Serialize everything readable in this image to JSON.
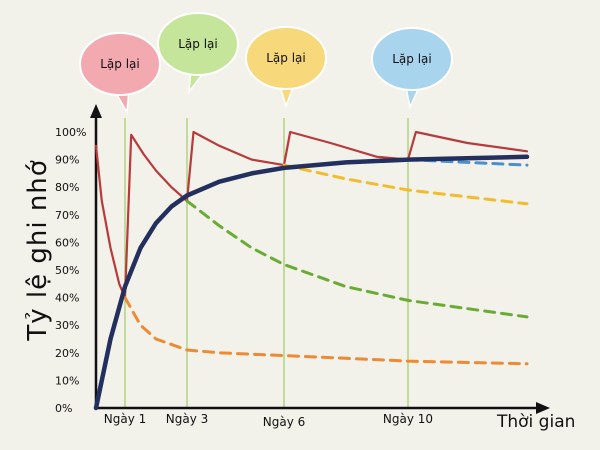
{
  "chart_data": {
    "type": "line",
    "title": "",
    "xlabel": "Thời gian",
    "ylabel": "Tỷ lệ ghi nhớ",
    "xlim": [
      0,
      13
    ],
    "ylim": [
      0,
      100
    ],
    "y_ticks": [
      "0%",
      "10%",
      "20%",
      "30%",
      "40%",
      "50%",
      "60%",
      "70%",
      "80%",
      "90%",
      "100%"
    ],
    "x_ticks": [
      {
        "x": 1,
        "label": "Ngày 1"
      },
      {
        "x": 3,
        "label": "Ngày 3"
      },
      {
        "x": 6,
        "label": "Ngày 6"
      },
      {
        "x": 10,
        "label": "Ngày 10"
      }
    ],
    "repeat_labels": [
      {
        "x": 1,
        "label": "Lặp lại",
        "color": "#f2a9b0"
      },
      {
        "x": 3,
        "label": "Lặp lại",
        "color": "#c5e69a"
      },
      {
        "x": 6,
        "label": "Lặp lại",
        "color": "#f7d87a"
      },
      {
        "x": 10,
        "label": "Lặp lại",
        "color": "#a9d4ee"
      }
    ],
    "series": [
      {
        "color": "#b83a3a",
        "style": "solid",
        "x": [
          0,
          0.2,
          0.5,
          0.8,
          1.0,
          1.2,
          1.6,
          2.0,
          2.5,
          3.0,
          3.2,
          4.0,
          5.0,
          6.0,
          6.2,
          7.5,
          9.0,
          10.0,
          10.2,
          11.5,
          13.0
        ],
        "y": [
          95,
          75,
          58,
          45,
          40,
          99,
          92,
          86,
          80,
          75,
          100,
          95,
          90,
          88,
          100,
          96,
          91,
          90,
          100,
          96,
          93
        ]
      },
      {
        "color": "#ee8a33",
        "style": "dashed",
        "x": [
          1,
          1.5,
          2,
          3,
          4,
          6,
          8,
          10,
          13
        ],
        "y": [
          40,
          30,
          25,
          21,
          20,
          19,
          18,
          17,
          16
        ]
      },
      {
        "color": "#6aab34",
        "style": "dashed",
        "x": [
          3,
          4,
          5,
          6,
          8,
          10,
          13
        ],
        "y": [
          75,
          66,
          58,
          52,
          44,
          39,
          33
        ]
      },
      {
        "color": "#f1bc2e",
        "style": "dashed",
        "x": [
          6,
          8,
          10,
          13
        ],
        "y": [
          88,
          83,
          79,
          74
        ]
      },
      {
        "color": "#4a8fce",
        "style": "dashed",
        "x": [
          10,
          11.5,
          13
        ],
        "y": [
          90,
          89,
          88
        ]
      },
      {
        "color": "#23305e",
        "style": "solid",
        "x": [
          0,
          0.5,
          1,
          1.5,
          2,
          2.5,
          3,
          4,
          5,
          6,
          8,
          10,
          13
        ],
        "y": [
          0,
          25,
          44,
          58,
          67,
          73,
          77,
          82,
          85,
          87,
          89,
          90,
          91
        ]
      }
    ]
  }
}
